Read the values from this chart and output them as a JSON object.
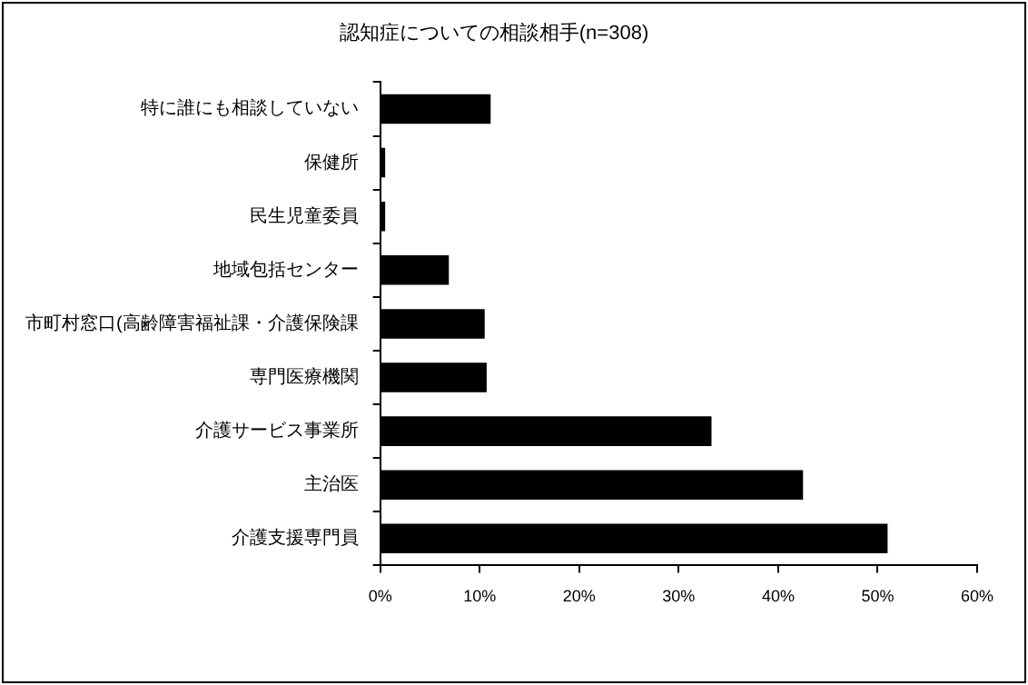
{
  "chart_data": {
    "type": "bar",
    "orientation": "horizontal",
    "title": "認知症についての相談相手(n=308)",
    "categories": [
      "特に誰にも相談していない",
      "保健所",
      "民生児童委員",
      "地域包括センター",
      "市町村窓口(高齢障害福祉課・介護保険課",
      "専門医療機関",
      "介護サービス事業所",
      "主治医",
      "介護支援専門員"
    ],
    "series": [
      {
        "color": "#000000",
        "values": [
          11.1,
          0.5,
          0.5,
          6.9,
          10.5,
          10.7,
          33.3,
          42.5,
          51.0
        ]
      }
    ],
    "xlim": [
      0,
      60
    ],
    "xticks": [
      {
        "value": 0,
        "label": "0%"
      },
      {
        "value": 10,
        "label": "10%"
      },
      {
        "value": 20,
        "label": "20%"
      },
      {
        "value": 30,
        "label": "30%"
      },
      {
        "value": 40,
        "label": "40%"
      },
      {
        "value": 50,
        "label": "50%"
      },
      {
        "value": 60,
        "label": "60%"
      }
    ],
    "grid": false,
    "legend": false
  }
}
